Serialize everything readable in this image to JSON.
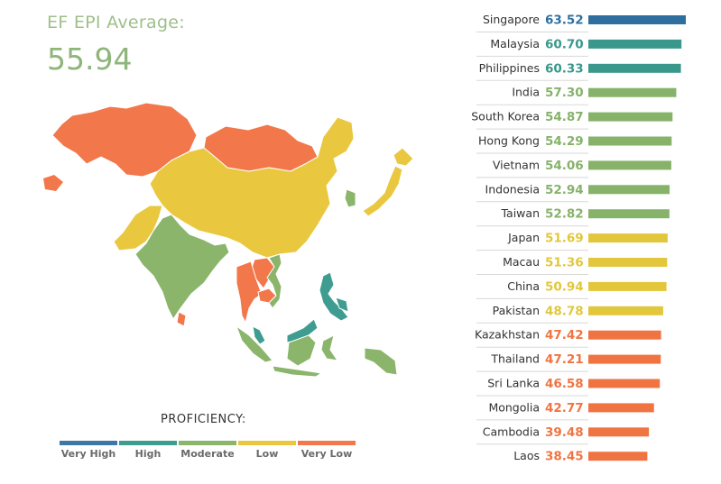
{
  "header": {
    "avg_label": "EF EPI Average:",
    "avg_value": "55.94"
  },
  "legend": {
    "title": "PROFICIENCY:",
    "items": [
      {
        "label": "Very High",
        "color": "#3b78a8"
      },
      {
        "label": "High",
        "color": "#3e9c90"
      },
      {
        "label": "Moderate",
        "color": "#8ab56a"
      },
      {
        "label": "Low",
        "color": "#e9c840"
      },
      {
        "label": "Very Low",
        "color": "#f2774a"
      }
    ]
  },
  "chart_data": {
    "type": "bar",
    "orientation": "horizontal",
    "categories": [
      "Singapore",
      "Malaysia",
      "Philippines",
      "India",
      "South Korea",
      "Hong Kong",
      "Vietnam",
      "Indonesia",
      "Taiwan",
      "Japan",
      "Macau",
      "China",
      "Pakistan",
      "Kazakhstan",
      "Thailand",
      "Sri Lanka",
      "Mongolia",
      "Cambodia",
      "Laos"
    ],
    "values": [
      63.52,
      60.7,
      60.33,
      57.3,
      54.87,
      54.29,
      54.06,
      52.94,
      52.82,
      51.69,
      51.36,
      50.94,
      48.78,
      47.42,
      47.21,
      46.58,
      42.77,
      39.48,
      38.45
    ],
    "value_labels": [
      "63.52",
      "60.70",
      "60.33",
      "57.30",
      "54.87",
      "54.29",
      "54.06",
      "52.94",
      "52.82",
      "51.69",
      "51.36",
      "50.94",
      "48.78",
      "47.42",
      "47.21",
      "46.58",
      "42.77",
      "39.48",
      "38.45"
    ],
    "proficiency": [
      "Very High",
      "High",
      "High",
      "Moderate",
      "Moderate",
      "Moderate",
      "Moderate",
      "Moderate",
      "Moderate",
      "Low",
      "Low",
      "Low",
      "Low",
      "Very Low",
      "Very Low",
      "Very Low",
      "Very Low",
      "Very Low",
      "Very Low"
    ],
    "colors": {
      "Very High": "#3b78a8",
      "High": "#3e9c90",
      "Moderate": "#8ab56a",
      "Low": "#e9c840",
      "Very Low": "#f2774a"
    },
    "xlim": [
      0,
      63.52
    ]
  },
  "map": {
    "regions": [
      {
        "name": "Kazakhstan",
        "level": "Very Low"
      },
      {
        "name": "Mongolia",
        "level": "Very Low"
      },
      {
        "name": "China",
        "level": "Low"
      },
      {
        "name": "Pakistan",
        "level": "Low"
      },
      {
        "name": "Japan",
        "level": "Low"
      },
      {
        "name": "India",
        "level": "Moderate"
      },
      {
        "name": "South Korea",
        "level": "Moderate"
      },
      {
        "name": "Vietnam",
        "level": "Moderate"
      },
      {
        "name": "Indonesia",
        "level": "Moderate"
      },
      {
        "name": "Thailand",
        "level": "Very Low"
      },
      {
        "name": "Cambodia",
        "level": "Very Low"
      },
      {
        "name": "Laos",
        "level": "Very Low"
      },
      {
        "name": "Sri Lanka",
        "level": "Very Low"
      },
      {
        "name": "Malaysia",
        "level": "High"
      },
      {
        "name": "Philippines",
        "level": "High"
      }
    ]
  }
}
